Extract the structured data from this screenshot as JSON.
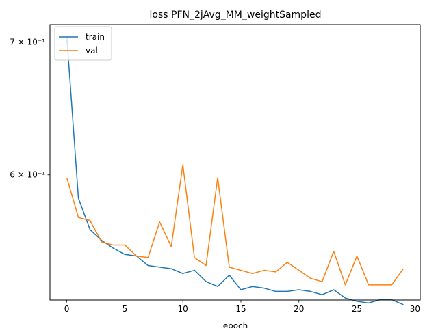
{
  "chart_data": {
    "type": "line",
    "title": "loss PFN_2jAvg_MM_weightSampled",
    "xlabel": "epoch",
    "ylabel": "",
    "yscale": "log",
    "xlim": [
      -1.45,
      30.45
    ],
    "ylim": [
      0.5188,
      0.7143
    ],
    "x_ticks": [
      0,
      5,
      10,
      15,
      20,
      25,
      30
    ],
    "x_tick_labels": [
      "0",
      "5",
      "10",
      "15",
      "20",
      "25",
      "30"
    ],
    "y_ticks": [
      0.6,
      0.7
    ],
    "y_tick_labels": [
      "6 × 10⁻¹",
      "7 × 10⁻¹"
    ],
    "grid": false,
    "legend_position": "top-left",
    "x": [
      0,
      1,
      2,
      3,
      4,
      5,
      6,
      7,
      8,
      9,
      10,
      11,
      12,
      13,
      14,
      15,
      16,
      17,
      18,
      19,
      20,
      21,
      22,
      23,
      24,
      25,
      26,
      27,
      28,
      29
    ],
    "series": [
      {
        "name": "train",
        "color": "#1f77b4",
        "values": [
          0.705,
          0.584,
          0.563,
          0.556,
          0.551,
          0.547,
          0.546,
          0.54,
          0.539,
          0.538,
          0.535,
          0.537,
          0.53,
          0.527,
          0.534,
          0.525,
          0.527,
          0.526,
          0.524,
          0.524,
          0.525,
          0.524,
          0.522,
          0.525,
          0.52,
          0.518,
          0.517,
          0.519,
          0.519,
          0.516
        ]
      },
      {
        "name": "val",
        "color": "#ff7f0e",
        "values": [
          0.598,
          0.571,
          0.569,
          0.555,
          0.553,
          0.553,
          0.546,
          0.545,
          0.568,
          0.552,
          0.607,
          0.545,
          0.54,
          0.598,
          0.539,
          0.537,
          0.535,
          0.537,
          0.536,
          0.542,
          0.537,
          0.532,
          0.53,
          0.549,
          0.528,
          0.546,
          0.528,
          0.528,
          0.528,
          0.538
        ]
      }
    ]
  }
}
